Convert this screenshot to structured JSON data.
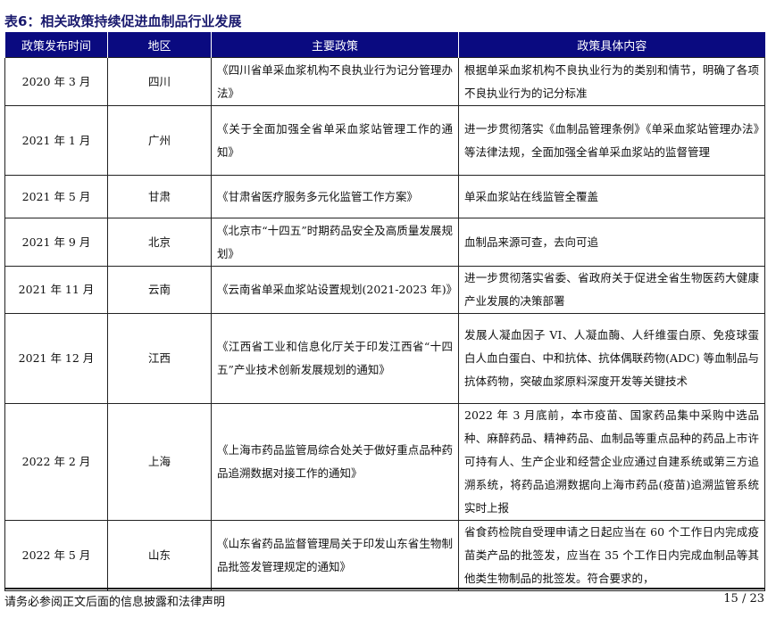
{
  "title": "表6：相关政策持续促进血制品行业发展",
  "headers": [
    "政策发布时间",
    "地区",
    "主要政策",
    "政策具体内容"
  ],
  "rows": [
    {
      "date": "2020 年 3 月",
      "region": "四川",
      "policy": "《四川省单采血浆机构不良执业行为记分管理办法》",
      "content": "根据单采血浆机构不良执业行为的类别和情节，明确了各项不良执业行为的记分标准"
    },
    {
      "date": "2021 年 1 月",
      "region": "广州",
      "policy": "《关于全面加强全省单采血浆站管理工作的通知》",
      "content": "进一步贯彻落实《血制品管理条例》《单采血浆站管理办法》等法律法规，全面加强全省单采血浆站的监督管理"
    },
    {
      "date": "2021 年 5 月",
      "region": "甘肃",
      "policy": "《甘肃省医疗服务多元化监管工作方案》",
      "content": "单采血浆站在线监管全覆盖"
    },
    {
      "date": "2021 年 9 月",
      "region": "北京",
      "policy": "《北京市“十四五”时期药品安全及高质量发展规划》",
      "content": "血制品来源可查，去向可追"
    },
    {
      "date": "2021 年 11 月",
      "region": "云南",
      "policy": "《云南省单采血浆站设置规划(2021-2023 年)》",
      "content": "进一步贯彻落实省委、省政府关于促进全省生物医药大健康产业发展的决策部署"
    },
    {
      "date": "2021 年 12 月",
      "region": "江西",
      "policy": "《江西省工业和信息化厅关于印发江西省“十四五”产业技术创新发展规划的通知》",
      "content": "发展人凝血因子 VI、人凝血酶、人纤维蛋白原、免疫球蛋白人血白蛋白、中和抗体、抗体偶联药物(ADC) 等血制品与抗体药物，突破血浆原料深度开发等关键技术"
    },
    {
      "date": "2022 年 2 月",
      "region": "上海",
      "policy": "《上海市药品监管局综合处关于做好重点品种药品追溯数据对接工作的通知》",
      "content": "2022 年 3 月底前，本市疫苗、国家药品集中采购中选品种、麻醉药品、精神药品、血制品等重点品种的药品上市许可持有人、生产企业和经营企业应通过自建系统或第三方追溯系统，将药品追溯数据向上海市药品(疫苗)追溯监管系统实时上报"
    },
    {
      "date": "2022 年 5 月",
      "region": "山东",
      "policy": "《山东省药品监督管理局关于印发山东省生物制品批签发管理规定的通知》",
      "content": "省食药检院自受理申请之日起应当在 60 个工作日内完成疫苗类产品的批签发，应当在 35 个工作日内完成血制品等其他类生物制品的批签发。符合要求的，"
    }
  ],
  "footer": {
    "disclaimer": "请务必参阅正文后面的信息披露和法律声明",
    "page": "15 / 23"
  }
}
